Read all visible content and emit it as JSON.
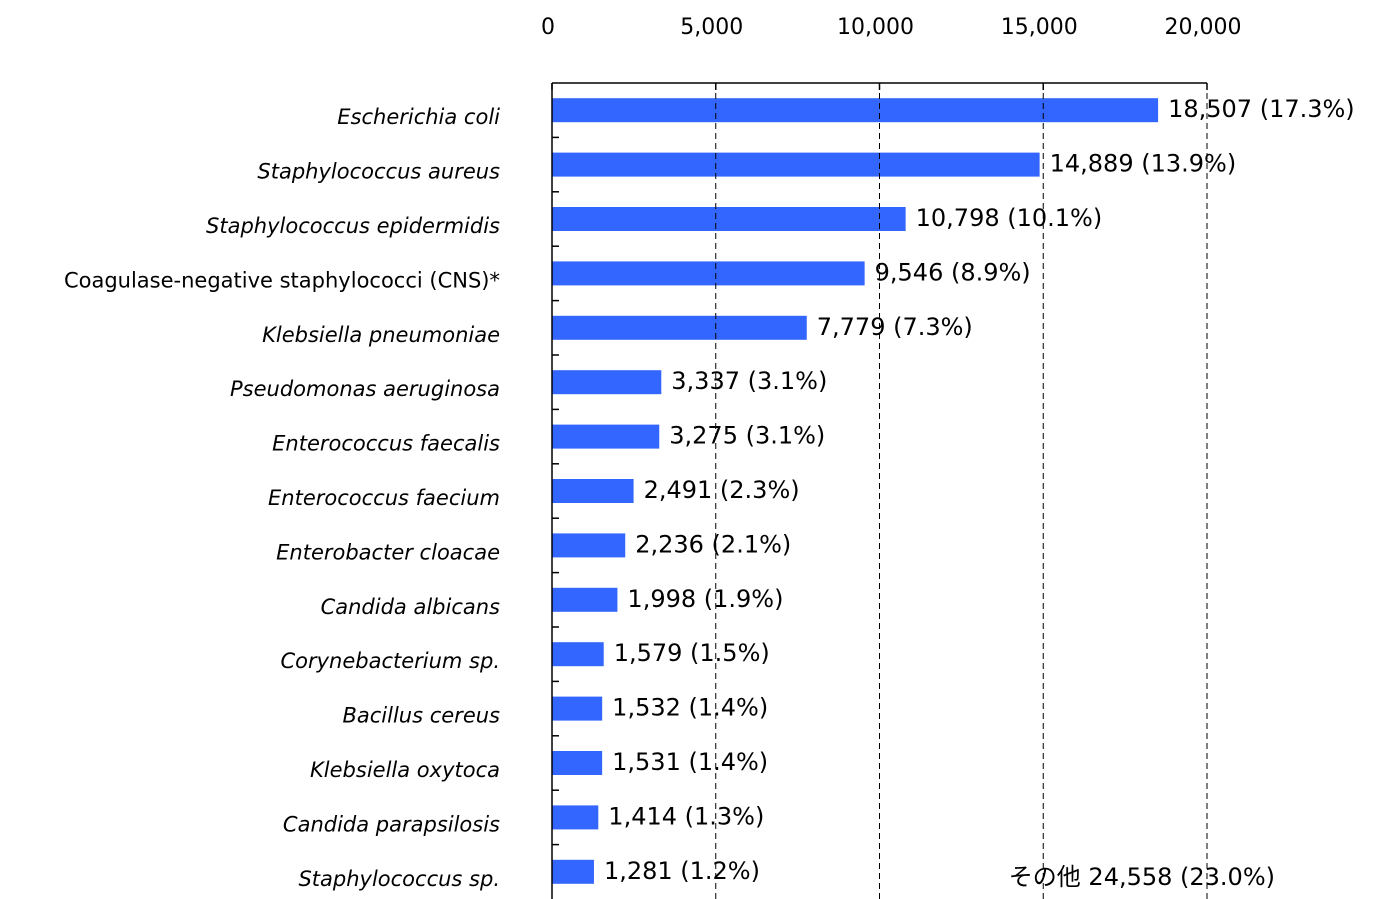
{
  "chart_data": {
    "type": "barh",
    "categories": [
      "Escherichia coli",
      "Staphylococcus aureus",
      "Staphylococcus epidermidis",
      "Coagulase-negative staphylococci (CNS)*",
      "Klebsiella pneumoniae",
      "Pseudomonas aeruginosa",
      "Enterococcus faecalis",
      "Enterococcus faecium",
      "Enterobacter cloacae",
      "Candida albicans",
      "Corynebacterium sp.",
      "Bacillus cereus",
      "Klebsiella oxytoca",
      "Candida parapsilosis",
      "Staphylococcus sp."
    ],
    "label_italic": [
      true,
      true,
      true,
      false,
      true,
      true,
      true,
      true,
      true,
      true,
      true,
      true,
      true,
      true,
      true
    ],
    "values": [
      18507,
      14889,
      10798,
      9546,
      7779,
      3337,
      3275,
      2491,
      2236,
      1998,
      1579,
      1532,
      1531,
      1414,
      1281
    ],
    "value_labels": [
      "18,507 (17.3%)",
      "14,889 (13.9%)",
      "10,798 (10.1%)",
      "9,546 (8.9%)",
      "7,779 (7.3%)",
      "3,337 (3.1%)",
      "3,275 (3.1%)",
      "2,491 (2.3%)",
      "2,236 (2.1%)",
      "1,998 (1.9%)",
      "1,579 (1.5%)",
      "1,532 (1.4%)",
      "1,531 (1.4%)",
      "1,414 (1.3%)",
      "1,281 (1.2%)"
    ],
    "color": "#3366ff",
    "xlim": [
      0,
      20000
    ],
    "xticks": [
      0,
      {
        "value": 5000,
        "label": "5,000"
      },
      {
        "value": 10000,
        "label": "10,000"
      },
      {
        "value": 15000,
        "label": "15,000"
      },
      {
        "value": 20000,
        "label": "20,000"
      }
    ],
    "grid": true,
    "annotation": "その他 24,558 (23.0%)"
  }
}
